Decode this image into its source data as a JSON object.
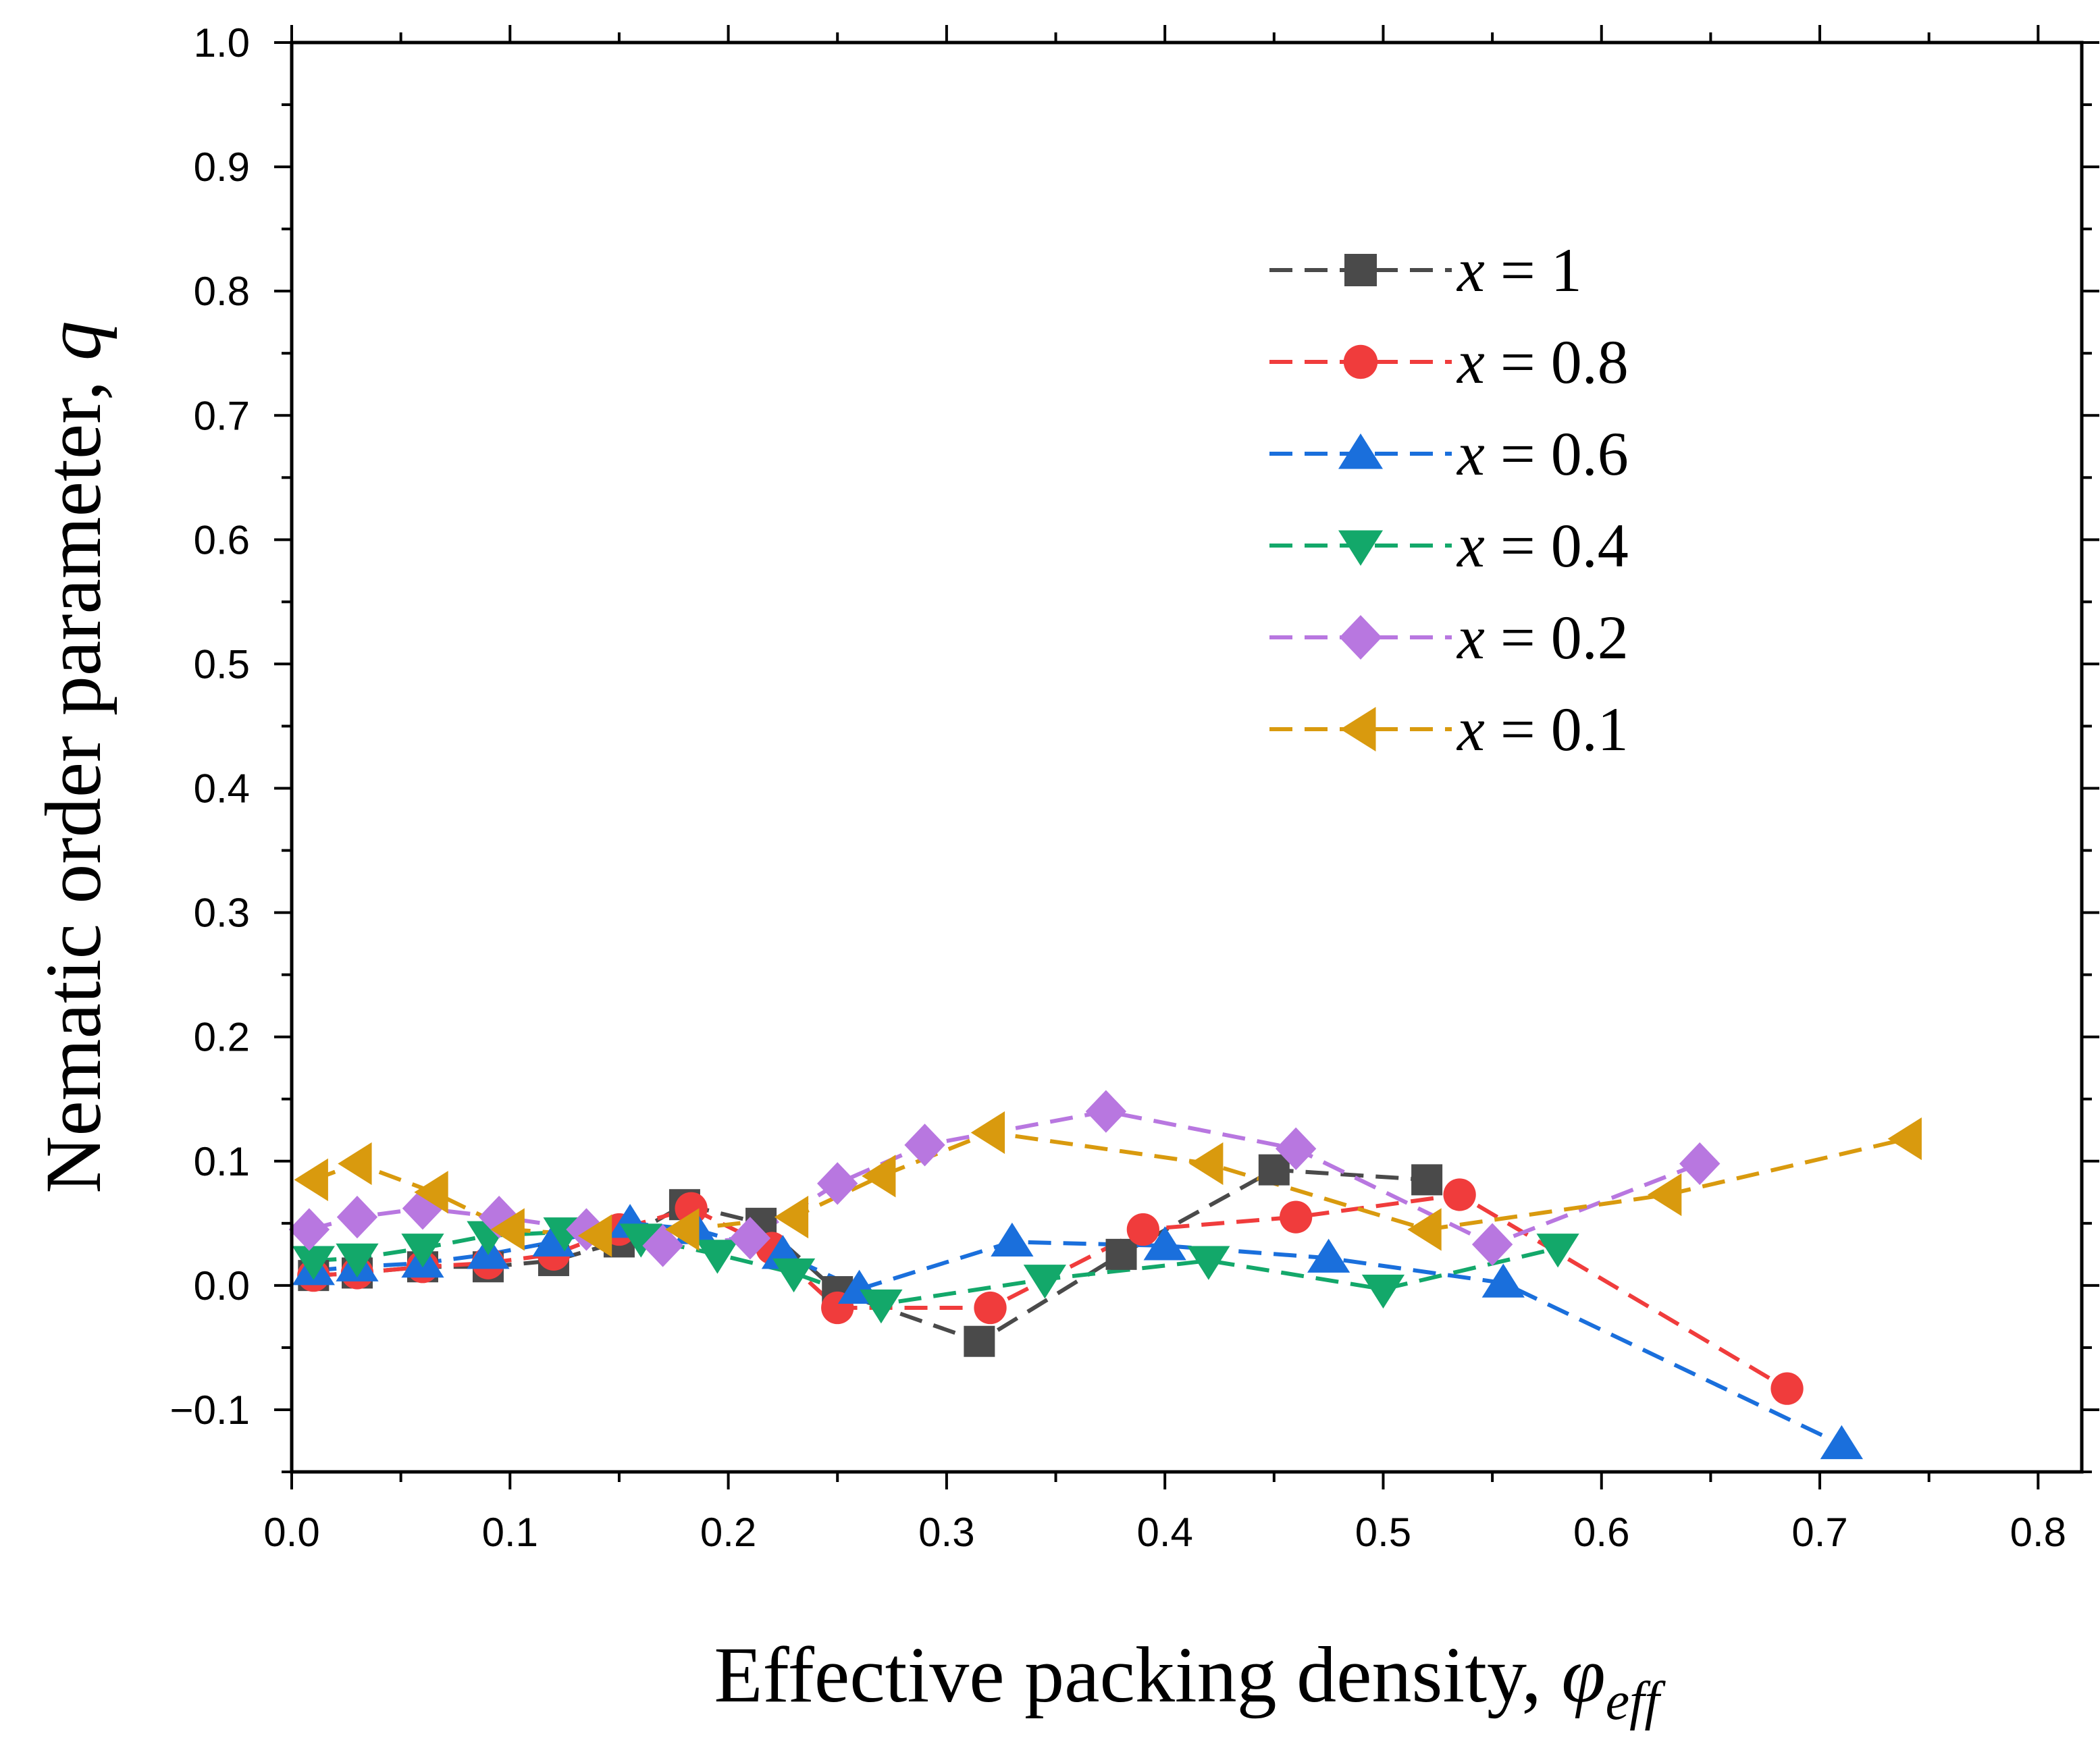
{
  "chart_data": {
    "type": "scatter",
    "title": "",
    "xlabel": "Effective packing density, ",
    "xlabel_symbol": "φ",
    "xlabel_subscript": "eff",
    "ylabel": "Nematic order parameter, ",
    "ylabel_symbol": "q",
    "xlim": [
      0,
      0.82
    ],
    "ylim": [
      -0.15,
      1.0
    ],
    "x_ticks": [
      0.0,
      0.1,
      0.2,
      0.3,
      0.4,
      0.5,
      0.6,
      0.7,
      0.8
    ],
    "x_tick_labels": [
      "0.0",
      "0.1",
      "0.2",
      "0.3",
      "0.4",
      "0.5",
      "0.6",
      "0.7",
      "0.8"
    ],
    "y_ticks": [
      -0.1,
      0.0,
      0.1,
      0.2,
      0.3,
      0.4,
      0.5,
      0.6,
      0.7,
      0.8,
      0.9,
      1.0
    ],
    "y_tick_labels": [
      "−0.1",
      "0.0",
      "0.1",
      "0.2",
      "0.3",
      "0.4",
      "0.5",
      "0.6",
      "0.7",
      "0.8",
      "0.9",
      "1.0"
    ],
    "legend_position": "upper-right",
    "series": [
      {
        "name": "x = 1",
        "var": "x",
        "eq": " = ",
        "num": "1",
        "color": "#4a4a4a",
        "marker": "square",
        "x": [
          0.01,
          0.03,
          0.06,
          0.09,
          0.12,
          0.15,
          0.18,
          0.215,
          0.25,
          0.315,
          0.38,
          0.45,
          0.52
        ],
        "y": [
          0.008,
          0.01,
          0.015,
          0.015,
          0.02,
          0.035,
          0.065,
          0.05,
          -0.005,
          -0.045,
          0.025,
          0.093,
          0.085
        ]
      },
      {
        "name": "x = 0.8",
        "var": "x",
        "eq": " = ",
        "num": "0.8",
        "color": "#f03c3c",
        "marker": "circle",
        "x": [
          0.01,
          0.03,
          0.06,
          0.09,
          0.12,
          0.15,
          0.183,
          0.22,
          0.25,
          0.32,
          0.39,
          0.46,
          0.535,
          0.685
        ],
        "y": [
          0.008,
          0.01,
          0.015,
          0.018,
          0.025,
          0.045,
          0.062,
          0.03,
          -0.018,
          -0.018,
          0.045,
          0.055,
          0.073,
          -0.083
        ]
      },
      {
        "name": "x = 0.6",
        "var": "x",
        "eq": " = ",
        "num": "0.6",
        "color": "#1a6fdc",
        "marker": "triangle-up",
        "x": [
          0.01,
          0.03,
          0.06,
          0.09,
          0.12,
          0.155,
          0.185,
          0.225,
          0.26,
          0.33,
          0.4,
          0.475,
          0.555,
          0.71
        ],
        "y": [
          0.012,
          0.015,
          0.018,
          0.025,
          0.035,
          0.05,
          0.045,
          0.025,
          -0.003,
          0.035,
          0.032,
          0.022,
          0.002,
          -0.128
        ]
      },
      {
        "name": "x = 0.4",
        "var": "x",
        "eq": " = ",
        "num": "0.4",
        "color": "#13a86a",
        "marker": "triangle-down",
        "x": [
          0.01,
          0.03,
          0.06,
          0.09,
          0.125,
          0.16,
          0.195,
          0.23,
          0.27,
          0.345,
          0.42,
          0.5,
          0.58
        ],
        "y": [
          0.02,
          0.022,
          0.03,
          0.04,
          0.043,
          0.038,
          0.025,
          0.01,
          -0.015,
          0.005,
          0.02,
          -0.003,
          0.03
        ]
      },
      {
        "name": "x = 0.2",
        "var": "x",
        "eq": " = ",
        "num": "0.2",
        "color": "#b877e0",
        "marker": "diamond",
        "x": [
          0.008,
          0.03,
          0.06,
          0.095,
          0.135,
          0.17,
          0.21,
          0.25,
          0.29,
          0.373,
          0.46,
          0.55,
          0.645
        ],
        "y": [
          0.045,
          0.055,
          0.062,
          0.055,
          0.045,
          0.032,
          0.038,
          0.082,
          0.113,
          0.14,
          0.11,
          0.033,
          0.098
        ]
      },
      {
        "name": "x = 0.1",
        "var": "x",
        "eq": " = ",
        "num": "0.1",
        "color": "#d99a0e",
        "marker": "triangle-left",
        "x": [
          0.01,
          0.03,
          0.065,
          0.1,
          0.14,
          0.18,
          0.23,
          0.27,
          0.32,
          0.42,
          0.52,
          0.63,
          0.74
        ],
        "y": [
          0.085,
          0.098,
          0.075,
          0.045,
          0.04,
          0.045,
          0.055,
          0.088,
          0.123,
          0.098,
          0.045,
          0.073,
          0.118
        ]
      }
    ]
  }
}
